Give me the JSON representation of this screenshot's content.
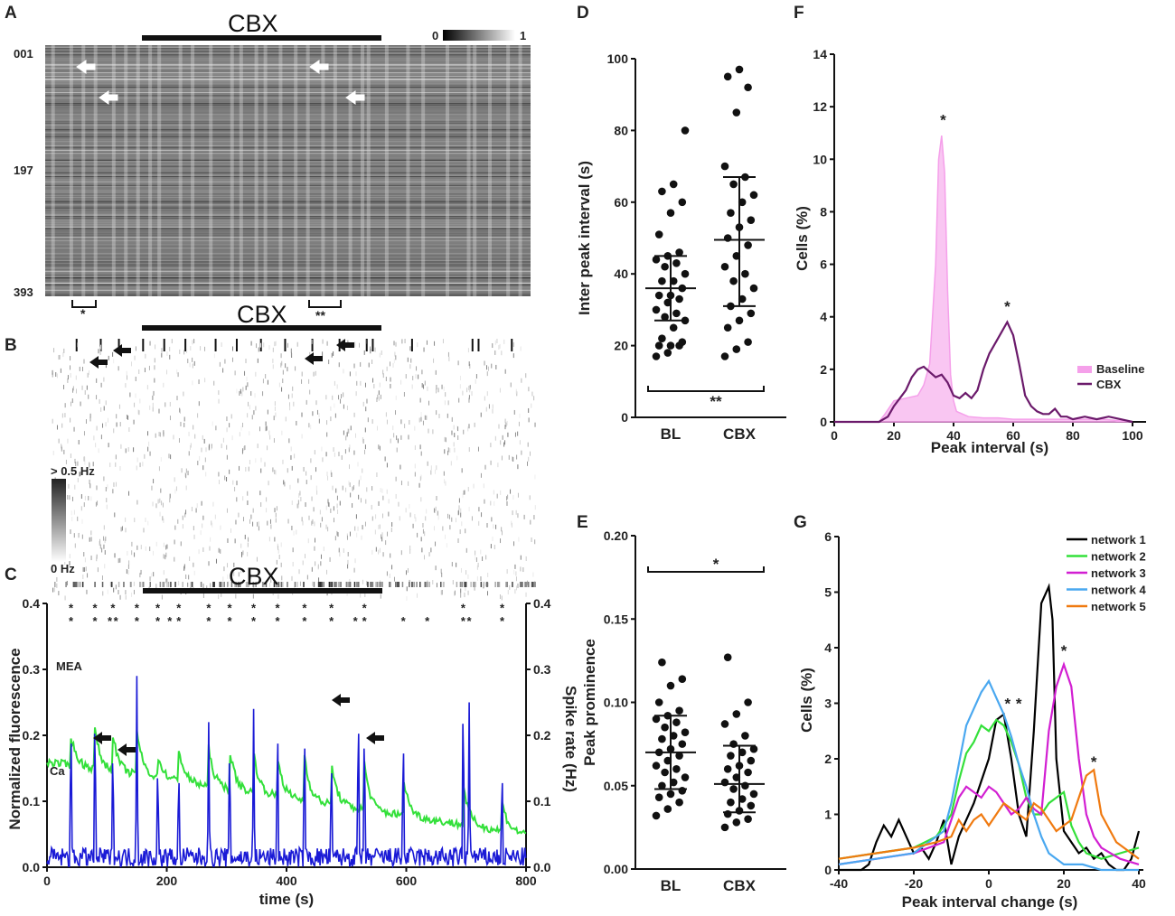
{
  "panel_labels": [
    "A",
    "B",
    "C",
    "D",
    "E",
    "F",
    "G"
  ],
  "panelA": {
    "drug_label": "CBX",
    "rows": [
      "001",
      "197",
      "393"
    ],
    "colorbar": {
      "min": "0",
      "max": "1"
    },
    "bracket_single": "*",
    "bracket_double": "**"
  },
  "panelB": {
    "drug_label": "CBX",
    "scale_max": "> 0.5 Hz",
    "scale_min": "0 Hz"
  },
  "colors": {
    "ca": "#33e03a",
    "mea": "#1a1ad6",
    "baseline": "#f5a0ea",
    "cbx": "#6b1a6b",
    "net1": "#000000",
    "net2": "#33e03a",
    "net3": "#d21fd2",
    "net4": "#4aa8f0",
    "net5": "#f07a10"
  },
  "chart_data": [
    {
      "id": "C",
      "type": "line",
      "title": "CBX",
      "xlabel": "time (s)",
      "ylabel": "Normalized fluorescence",
      "y2label": "Spike rate (Hz)",
      "xlim": [
        0,
        800
      ],
      "ylim": [
        0,
        0.4
      ],
      "y2lim": [
        0,
        0.4
      ],
      "xticks": [
        0,
        200,
        400,
        600,
        800
      ],
      "yticks": [
        "0.0",
        "0.1",
        "0.2",
        "0.3",
        "0.4"
      ],
      "y2ticks": [
        "0.0",
        "0.1",
        "0.2",
        "0.3",
        "0.4"
      ],
      "series_labels": {
        "mea": "MEA",
        "ca": "Ca"
      },
      "cbx_period": [
        160,
        560
      ],
      "ca_peaks": [
        40,
        80,
        110,
        150,
        185,
        220,
        270,
        305,
        345,
        385,
        430,
        475,
        530,
        595,
        695,
        760
      ],
      "mea_peaks": [
        40,
        80,
        110,
        150,
        185,
        220,
        270,
        305,
        345,
        385,
        430,
        475,
        520,
        530,
        595,
        695,
        705,
        760
      ],
      "ca_peak_heights": [
        0.2,
        0.21,
        0.2,
        0.21,
        0.17,
        0.18,
        0.18,
        0.18,
        0.175,
        0.17,
        0.17,
        0.16,
        0.16,
        0.14,
        0.13,
        0.1
      ],
      "mea_peak_heights": [
        0.25,
        0.27,
        0.21,
        0.29,
        0.18,
        0.17,
        0.22,
        0.21,
        0.24,
        0.25,
        0.24,
        0.19,
        0.27,
        0.24,
        0.23,
        0.29,
        0.25,
        0.17
      ],
      "green_star_times": [
        40,
        80,
        110,
        150,
        185,
        220,
        270,
        305,
        345,
        385,
        430,
        475,
        530,
        695,
        760
      ],
      "blue_star_times": [
        40,
        80,
        105,
        115,
        150,
        185,
        205,
        220,
        270,
        305,
        345,
        385,
        430,
        475,
        515,
        530,
        595,
        635,
        695,
        705,
        760
      ]
    },
    {
      "id": "D",
      "type": "scatter",
      "ylabel": "Inter peak interval (s)",
      "categories": [
        "BL",
        "CBX"
      ],
      "ylim": [
        0,
        100
      ],
      "yticks": [
        0,
        20,
        40,
        60,
        80,
        100
      ],
      "BL": [
        17,
        18,
        20,
        20,
        20,
        21,
        22,
        25,
        27,
        28,
        29,
        30,
        32,
        33,
        34,
        34,
        36,
        38,
        38,
        40,
        42,
        43,
        44,
        45,
        46,
        51,
        57,
        60,
        63,
        65,
        80
      ],
      "CBX": [
        17,
        19,
        21,
        25,
        27,
        29,
        31,
        33,
        36,
        38,
        40,
        42,
        45,
        48,
        50,
        53,
        55,
        57,
        60,
        62,
        65,
        67,
        70,
        85,
        92,
        95,
        97
      ],
      "BL_mean": 36,
      "BL_sd": [
        27,
        45
      ],
      "CBX_mean": 49.5,
      "CBX_sd": [
        31,
        67
      ],
      "significance": "**"
    },
    {
      "id": "E",
      "type": "scatter",
      "ylabel": "Peak prominence",
      "categories": [
        "BL",
        "CBX"
      ],
      "ylim": [
        0,
        0.2
      ],
      "yticks": [
        "0.00",
        "0.05",
        "0.10",
        "0.15",
        "0.20"
      ],
      "BL": [
        0.032,
        0.036,
        0.04,
        0.043,
        0.045,
        0.047,
        0.05,
        0.052,
        0.055,
        0.058,
        0.06,
        0.062,
        0.065,
        0.068,
        0.07,
        0.072,
        0.075,
        0.078,
        0.08,
        0.082,
        0.085,
        0.088,
        0.09,
        0.092,
        0.095,
        0.1,
        0.11,
        0.114,
        0.124
      ],
      "CBX": [
        0.025,
        0.028,
        0.03,
        0.033,
        0.035,
        0.038,
        0.04,
        0.042,
        0.045,
        0.048,
        0.05,
        0.052,
        0.055,
        0.058,
        0.06,
        0.062,
        0.065,
        0.068,
        0.07,
        0.072,
        0.075,
        0.08,
        0.087,
        0.093,
        0.1,
        0.127
      ],
      "BL_mean": 0.07,
      "BL_sd": [
        0.048,
        0.092
      ],
      "CBX_mean": 0.051,
      "CBX_sd": [
        0.034,
        0.074
      ],
      "significance": "*"
    },
    {
      "id": "F",
      "type": "area",
      "xlabel": "Peak interval (s)",
      "ylabel": "Cells (%)",
      "xlim": [
        0,
        100
      ],
      "ylim": [
        0,
        14
      ],
      "xticks": [
        0,
        20,
        40,
        60,
        80,
        100
      ],
      "yticks": [
        0,
        2,
        4,
        6,
        8,
        10,
        12,
        14
      ],
      "legend": [
        "Baseline",
        "CBX"
      ],
      "series": [
        {
          "name": "Baseline",
          "x": [
            0,
            15,
            17,
            20,
            24,
            28,
            30,
            32,
            34,
            35,
            36,
            37,
            38,
            39,
            40,
            41,
            43,
            45,
            50,
            55,
            60,
            70,
            80,
            90,
            100
          ],
          "values": [
            0,
            0,
            0.3,
            0.8,
            0.9,
            1.0,
            1.4,
            2.2,
            6.0,
            10.0,
            10.9,
            9.5,
            5.0,
            1.8,
            0.8,
            0.4,
            0.3,
            0.2,
            0.15,
            0.15,
            0.1,
            0.1,
            0.1,
            0.1,
            0.0
          ]
        },
        {
          "name": "CBX",
          "x": [
            0,
            15,
            18,
            20,
            22,
            24,
            26,
            28,
            30,
            32,
            34,
            36,
            38,
            40,
            42,
            44,
            46,
            48,
            50,
            52,
            54,
            56,
            58,
            60,
            62,
            64,
            66,
            68,
            70,
            72,
            74,
            76,
            78,
            80,
            84,
            88,
            92,
            96,
            100
          ],
          "values": [
            0,
            0,
            0.2,
            0.6,
            0.9,
            1.2,
            1.7,
            2.0,
            2.1,
            1.9,
            1.7,
            1.8,
            1.5,
            1.0,
            0.9,
            1.1,
            0.9,
            1.2,
            2.0,
            2.6,
            3.0,
            3.4,
            3.8,
            3.3,
            2.2,
            1.0,
            0.6,
            0.4,
            0.3,
            0.3,
            0.5,
            0.2,
            0.2,
            0.1,
            0.2,
            0.1,
            0.2,
            0.1,
            0.0
          ]
        }
      ],
      "stars": [
        "*",
        "*"
      ]
    },
    {
      "id": "G",
      "type": "line",
      "xlabel": "Peak interval change (s)",
      "ylabel": "Cells (%)",
      "xlim": [
        -40,
        40
      ],
      "ylim": [
        0,
        6
      ],
      "xticks": [
        -40,
        -20,
        0,
        20,
        40
      ],
      "yticks": [
        0,
        1,
        2,
        3,
        4,
        5,
        6
      ],
      "series": [
        {
          "name": "network 1",
          "x": [
            -40,
            -34,
            -32,
            -30,
            -28,
            -26,
            -24,
            -22,
            -20,
            -18,
            -16,
            -14,
            -12,
            -10,
            -8,
            -6,
            -4,
            -2,
            0,
            2,
            4,
            6,
            8,
            10,
            12,
            14,
            16,
            17,
            18,
            20,
            22,
            24,
            26,
            28,
            30,
            32,
            34,
            36,
            38,
            40
          ],
          "values": [
            0,
            0,
            0.1,
            0.5,
            0.8,
            0.6,
            0.9,
            0.6,
            0.3,
            0.4,
            0.2,
            0.5,
            0.9,
            0.1,
            0.6,
            0.9,
            1.2,
            1.6,
            2.0,
            2.7,
            2.8,
            2.0,
            1.0,
            0.6,
            2.5,
            4.8,
            5.1,
            4.5,
            2.0,
            0.7,
            0.5,
            0.3,
            0.4,
            0.2,
            0.3,
            0.1,
            0.0,
            0.0,
            0.2,
            0.7
          ]
        },
        {
          "name": "network 2",
          "x": [
            -40,
            -30,
            -20,
            -14,
            -10,
            -8,
            -6,
            -4,
            -2,
            0,
            2,
            4,
            6,
            8,
            10,
            12,
            14,
            16,
            18,
            20,
            22,
            24,
            26,
            30,
            35,
            40
          ],
          "values": [
            0.2,
            0.3,
            0.4,
            0.6,
            1.0,
            1.6,
            2.1,
            2.3,
            2.6,
            2.5,
            2.7,
            2.6,
            2.3,
            1.9,
            1.3,
            1.0,
            1.0,
            1.2,
            1.3,
            1.4,
            0.8,
            0.5,
            0.3,
            0.2,
            0.3,
            0.4
          ]
        },
        {
          "name": "network 3",
          "x": [
            -40,
            -30,
            -20,
            -12,
            -10,
            -8,
            -6,
            -4,
            -2,
            0,
            2,
            4,
            6,
            8,
            10,
            12,
            14,
            16,
            18,
            20,
            22,
            24,
            26,
            28,
            30,
            35,
            40
          ],
          "values": [
            0.1,
            0.2,
            0.3,
            0.5,
            0.9,
            1.3,
            1.5,
            1.4,
            1.3,
            1.5,
            1.4,
            1.2,
            1.0,
            1.1,
            1.3,
            1.1,
            1.0,
            2.5,
            3.3,
            3.7,
            3.3,
            2.0,
            1.0,
            0.6,
            0.4,
            0.2,
            0.1
          ]
        },
        {
          "name": "network 4",
          "x": [
            -40,
            -30,
            -20,
            -12,
            -10,
            -8,
            -6,
            -4,
            -2,
            0,
            2,
            4,
            6,
            8,
            10,
            12,
            14,
            16,
            18,
            20,
            25,
            30,
            35,
            40
          ],
          "values": [
            0.1,
            0.2,
            0.3,
            0.7,
            1.2,
            1.9,
            2.6,
            2.9,
            3.2,
            3.4,
            3.1,
            2.8,
            2.4,
            1.9,
            1.5,
            1.0,
            0.6,
            0.3,
            0.2,
            0.1,
            0.1,
            0.0,
            0.0,
            0.0
          ]
        },
        {
          "name": "network 5",
          "x": [
            -40,
            -30,
            -20,
            -14,
            -10,
            -8,
            -6,
            -4,
            -2,
            0,
            2,
            4,
            6,
            8,
            10,
            12,
            14,
            16,
            18,
            20,
            22,
            24,
            26,
            28,
            30,
            34,
            38,
            40
          ],
          "values": [
            0.2,
            0.3,
            0.4,
            0.5,
            0.6,
            0.9,
            0.7,
            0.9,
            1.0,
            0.8,
            1.0,
            1.2,
            1.1,
            1.0,
            0.9,
            1.2,
            1.1,
            0.9,
            0.7,
            0.8,
            0.9,
            1.3,
            1.7,
            1.8,
            1.0,
            0.5,
            0.3,
            0.2
          ]
        }
      ],
      "legend": [
        "network 1",
        "network 2",
        "network 3",
        "network 4",
        "network 5"
      ],
      "stars": [
        "*",
        "*",
        "*",
        "*"
      ]
    }
  ]
}
